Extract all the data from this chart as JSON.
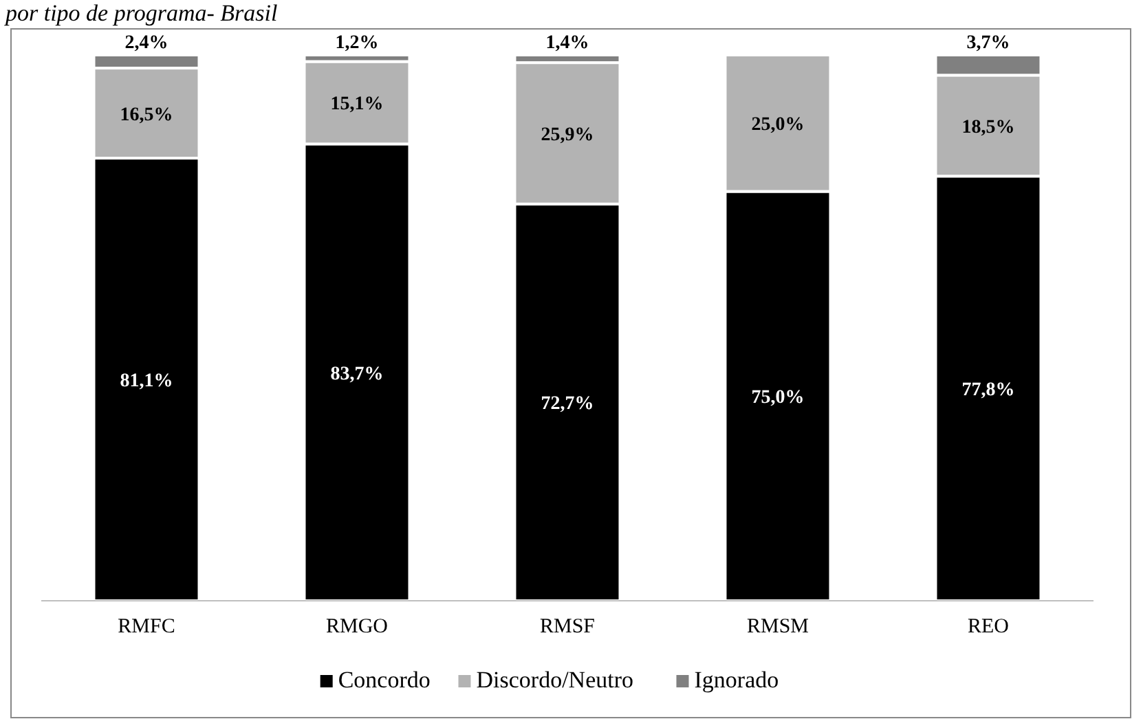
{
  "chart_data": {
    "type": "bar",
    "title": "por tipo de programa- Brasil",
    "categories": [
      "RMFC",
      "RMGO",
      "RMSF",
      "RMSM",
      "REO"
    ],
    "stacked": true,
    "ylim": [
      0,
      100
    ],
    "tick_labels": "x",
    "legend": "bottom",
    "grid": false,
    "series": [
      {
        "name": "Concordo",
        "color": "#000000",
        "values": [
          81.1,
          83.7,
          72.7,
          75.0,
          77.8
        ],
        "value_labels": [
          "81,1%",
          "83,7%",
          "72,7%",
          "75,0%",
          "77,8%"
        ]
      },
      {
        "name": "Discordo/Neutro",
        "color": "#b3b3b3",
        "values": [
          16.5,
          15.1,
          25.9,
          25.0,
          18.5
        ],
        "value_labels": [
          "16,5%",
          "15,1%",
          "25,9%",
          "25,0%",
          "18,5%"
        ]
      },
      {
        "name": "Ignorado",
        "color": "#808080",
        "values": [
          2.4,
          1.2,
          1.4,
          0,
          3.7
        ],
        "value_labels": [
          "2,4%",
          "1,2%",
          "1,4%",
          null,
          "3,7%"
        ]
      }
    ]
  }
}
